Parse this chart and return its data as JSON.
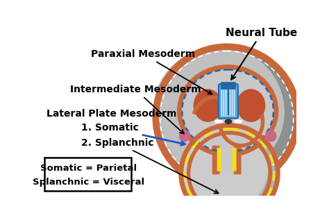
{
  "bg_color": "#ffffff",
  "labels": {
    "neural_tube": "Neural Tube",
    "paraxial": "Paraxial Mesoderm",
    "intermediate": "Intermediate Mesoderm",
    "lateral": "Lateral Plate Mesoderm",
    "somatic": "1. Somatic",
    "splanchnic": "2. Splanchnic",
    "box_line1": "Somatic = Parietal",
    "box_line2": "Splanchnic = Visceral"
  },
  "colors": {
    "outer_gray": "#aaaaaa",
    "outer_gray2": "#c8c8c8",
    "outer_ring_orange": "#c8683a",
    "inner_gray": "#c0c0c0",
    "inner_gray2": "#d8d8d8",
    "yellow_dot": "#f0e020",
    "blue_tube": "#60aadd",
    "blue_tube_dark": "#2266aa",
    "dark_orange": "#c05030",
    "pink_magenta": "#cc6688",
    "notochord": "#555555",
    "white": "#ffffff",
    "black": "#000000",
    "blue_arrow": "#2255cc",
    "dashed_orange": "#cc6633"
  },
  "fig_w": 4.74,
  "fig_h": 3.17,
  "dpi": 100,
  "font_size_title": 11,
  "font_size_label": 10,
  "font_size_box": 9.5
}
